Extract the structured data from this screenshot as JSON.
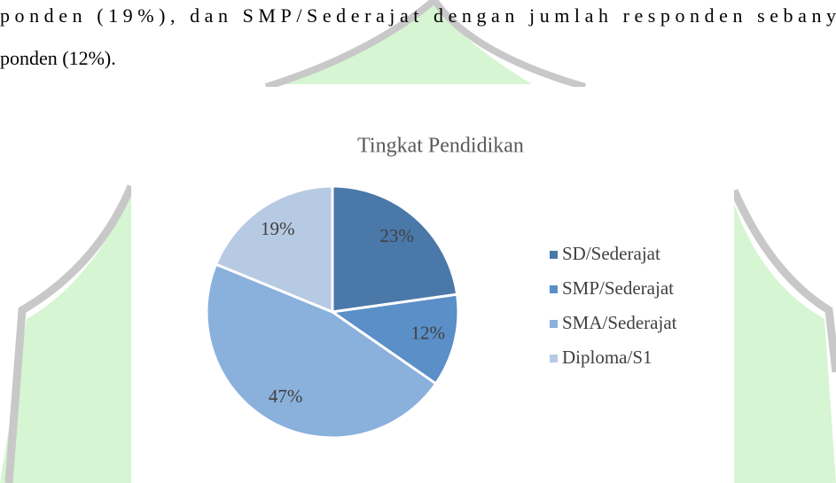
{
  "document": {
    "lines": [
      "ponden (19%), dan SMP/Sederajat dengan jumlah responden sebany",
      "ponden (12%)."
    ]
  },
  "chart_data": {
    "type": "pie",
    "title": "Tingkat Pendidikan",
    "categories": [
      "SD/Sederajat",
      "SMP/Sederajat",
      "SMA/Sederajat",
      "Diploma/S1"
    ],
    "values": [
      23,
      12,
      47,
      19
    ],
    "value_labels": [
      "23%",
      "12%",
      "47%",
      "19%"
    ],
    "colors": [
      "#4a78a9",
      "#5a8fc8",
      "#8ab0dc",
      "#b7cae4"
    ],
    "legend": "right"
  }
}
